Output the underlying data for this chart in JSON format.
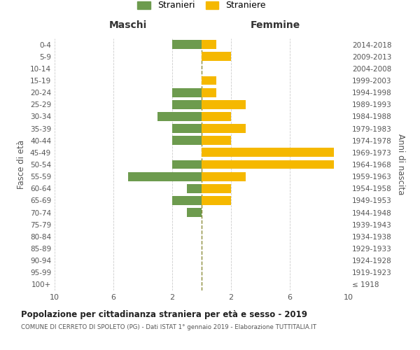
{
  "age_groups": [
    "100+",
    "95-99",
    "90-94",
    "85-89",
    "80-84",
    "75-79",
    "70-74",
    "65-69",
    "60-64",
    "55-59",
    "50-54",
    "45-49",
    "40-44",
    "35-39",
    "30-34",
    "25-29",
    "20-24",
    "15-19",
    "10-14",
    "5-9",
    "0-4"
  ],
  "birth_years": [
    "≤ 1918",
    "1919-1923",
    "1924-1928",
    "1929-1933",
    "1934-1938",
    "1939-1943",
    "1944-1948",
    "1949-1953",
    "1954-1958",
    "1959-1963",
    "1964-1968",
    "1969-1973",
    "1974-1978",
    "1979-1983",
    "1984-1988",
    "1989-1993",
    "1994-1998",
    "1999-2003",
    "2004-2008",
    "2009-2013",
    "2014-2018"
  ],
  "maschi": [
    0,
    0,
    0,
    0,
    0,
    0,
    1,
    2,
    1,
    5,
    2,
    0,
    2,
    2,
    3,
    2,
    2,
    0,
    0,
    0,
    2
  ],
  "femmine": [
    0,
    0,
    0,
    0,
    0,
    0,
    0,
    2,
    2,
    3,
    9,
    9,
    2,
    3,
    2,
    3,
    1,
    1,
    0,
    2,
    1
  ],
  "maschi_color": "#6d9b4e",
  "femmine_color": "#f5b800",
  "title": "Popolazione per cittadinanza straniera per età e sesso - 2019",
  "subtitle": "COMUNE DI CERRETO DI SPOLETO (PG) - Dati ISTAT 1° gennaio 2019 - Elaborazione TUTTITALIA.IT",
  "xlabel_left": "Maschi",
  "xlabel_right": "Femmine",
  "ylabel_left": "Fasce di età",
  "ylabel_right": "Anni di nascita",
  "legend_maschi": "Stranieri",
  "legend_femmine": "Straniere",
  "xlim": 10,
  "background_color": "#ffffff",
  "grid_color": "#cccccc",
  "dashed_line_color": "#8b8b3a",
  "bar_height": 0.75
}
